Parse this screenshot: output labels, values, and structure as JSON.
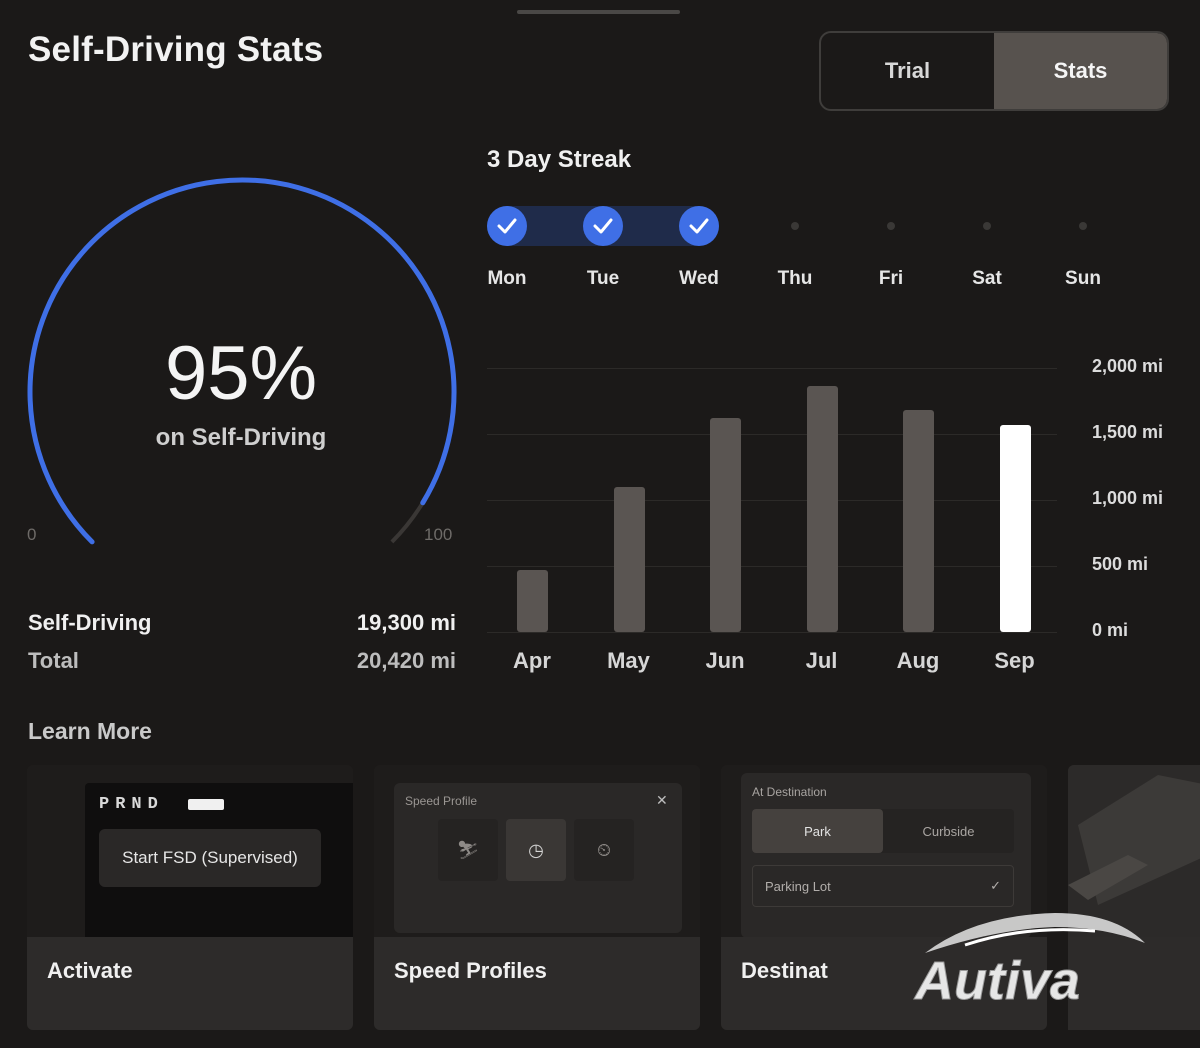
{
  "header": {
    "title": "Self-Driving Stats"
  },
  "segmented": {
    "trial_label": "Trial",
    "stats_label": "Stats",
    "active": "Stats"
  },
  "gauge": {
    "percent_text": "95%",
    "value": 95,
    "sub": "on Self-Driving",
    "min": "0",
    "max": "100",
    "accent": "#3f6fe6"
  },
  "stats": [
    {
      "label": "Self-Driving",
      "value": "19,300 mi"
    },
    {
      "label": "Total",
      "value": "20,420 mi"
    }
  ],
  "streak": {
    "title": "3 Day Streak",
    "days": [
      {
        "label": "Mon",
        "done": true
      },
      {
        "label": "Tue",
        "done": true
      },
      {
        "label": "Wed",
        "done": true
      },
      {
        "label": "Thu",
        "done": false
      },
      {
        "label": "Fri",
        "done": false
      },
      {
        "label": "Sat",
        "done": false
      },
      {
        "label": "Sun",
        "done": false
      }
    ]
  },
  "chart_data": {
    "type": "bar",
    "categories": [
      "Apr",
      "May",
      "Jun",
      "Jul",
      "Aug",
      "Sep"
    ],
    "values": [
      470,
      1100,
      1620,
      1860,
      1680,
      1570
    ],
    "yticks": [
      "2,000 mi",
      "1,500 mi",
      "1,000 mi",
      "500 mi",
      "0 mi"
    ],
    "ylim": [
      0,
      2000
    ],
    "highlight": "Sep",
    "highlight_color": "#ffffff",
    "bar_color": "#5a5552"
  },
  "learn": {
    "title": "Learn More",
    "cards": [
      {
        "label": "Activate",
        "gear": "PRND",
        "button": "Start FSD (Supervised)"
      },
      {
        "label": "Speed Profiles",
        "panel_title": "Speed Profile"
      },
      {
        "label": "Destinat",
        "panel_title": "At Destination",
        "opt_a": "Park",
        "opt_b": "Curbside",
        "field": "Parking Lot"
      }
    ]
  },
  "watermark": {
    "text": "Autiva"
  }
}
